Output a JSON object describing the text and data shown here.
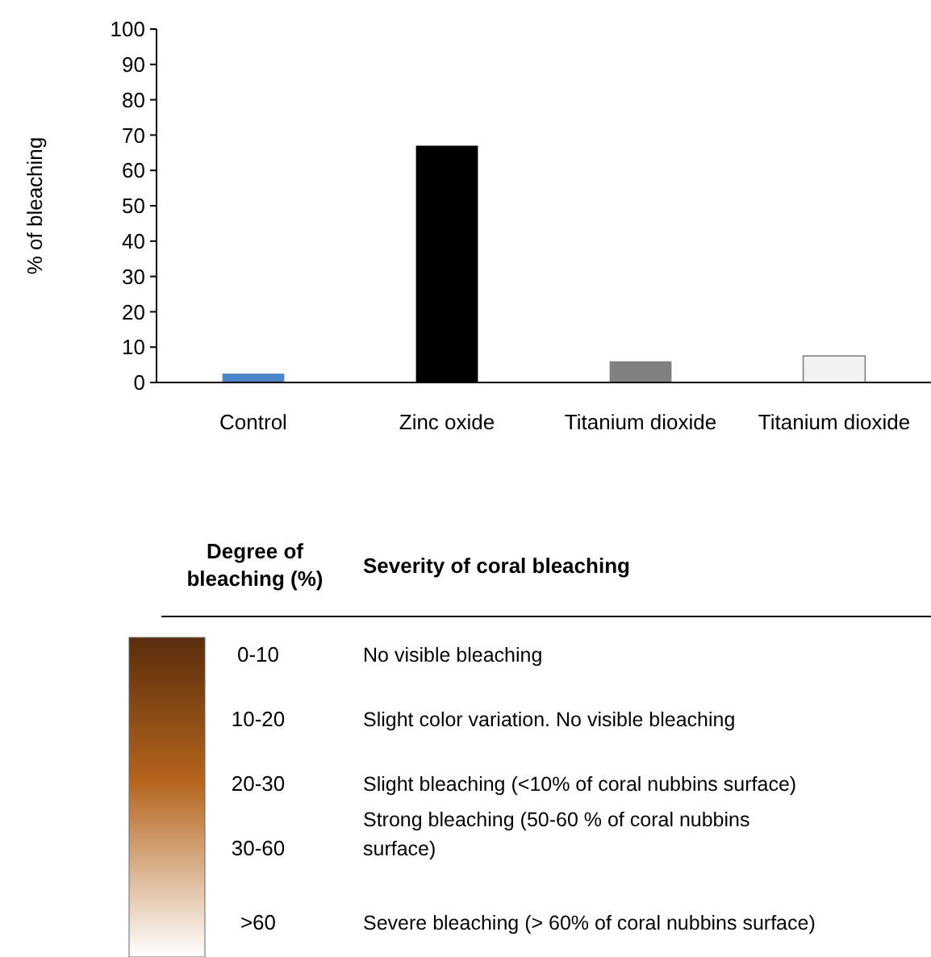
{
  "chart_data": [
    {
      "type": "bar",
      "ylabel": "% of bleaching",
      "categories": [
        "Control",
        "Zinc oxide",
        "Titanium dioxide",
        "Titanium dioxide"
      ],
      "values": [
        2.5,
        67,
        6,
        7.5
      ],
      "colors": [
        "#4a86c8",
        "#000000",
        "#808080",
        "#f2f2f2"
      ],
      "ylim": [
        0,
        100
      ],
      "yticks": [
        0,
        10,
        20,
        30,
        40,
        50,
        60,
        70,
        80,
        90,
        100
      ],
      "grid": false
    },
    {
      "type": "other",
      "xlabel": "Degree of bleaching (%)",
      "ylabel": "Severity of coral bleaching",
      "categories": [
        "0-10",
        "10-20",
        "20-30",
        "30-60",
        ">60"
      ],
      "annotations": [
        "No visible bleaching",
        "Slight color variation. No visible bleaching",
        "Slight bleaching (<10% of coral nubbins surface)",
        "Strong bleaching (50-60 % of coral nubbins surface)",
        "Severe bleaching (> 60% of coral nubbins surface)"
      ]
    }
  ]
}
